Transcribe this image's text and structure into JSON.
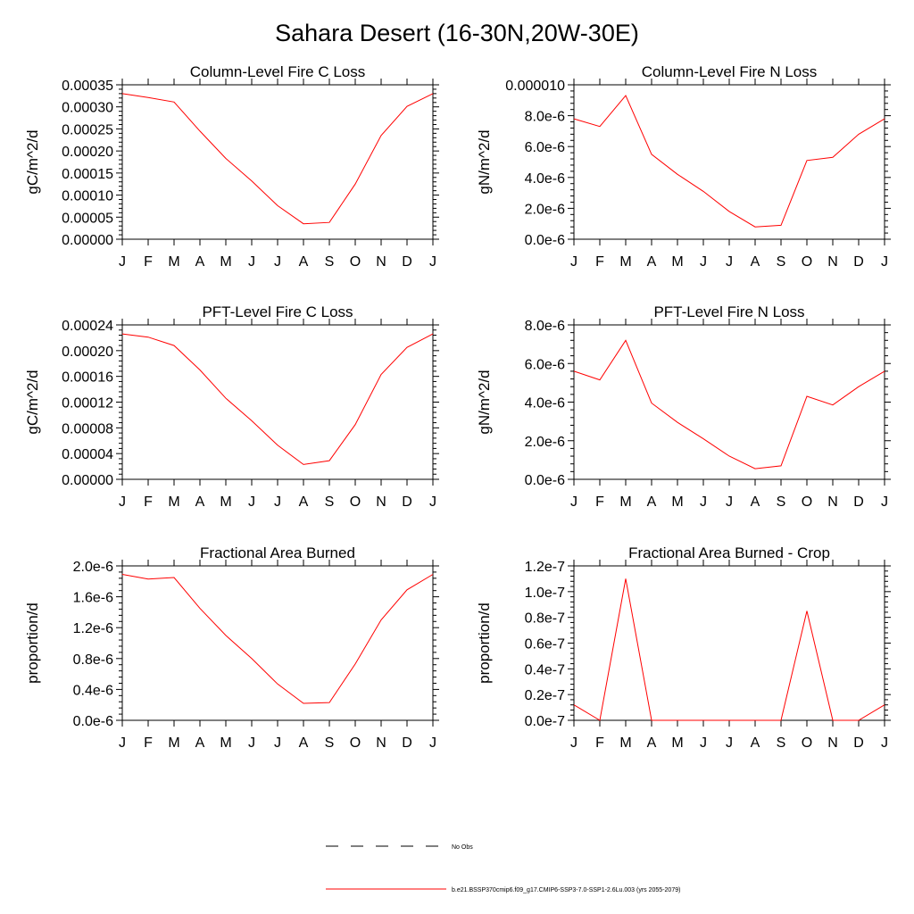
{
  "figure": {
    "title": "Sahara Desert (16-30N,20W-30E)"
  },
  "legend": {
    "entries": [
      {
        "label": "No Obs",
        "style": "dashed",
        "color": "#000000"
      },
      {
        "label": "b.e21.BSSP370cmip6.f09_g17.CMIP6-SSP3-7.0-SSP1-2.6Lu.003 (yrs 2055-2079)",
        "style": "solid",
        "color": "#ff0000"
      }
    ]
  },
  "chart_data": [
    {
      "type": "line",
      "title": "Column-Level Fire C Loss",
      "ylabel": "gC/m^2/d",
      "xlabel": "",
      "categories": [
        "J",
        "F",
        "M",
        "A",
        "M",
        "J",
        "J",
        "A",
        "S",
        "O",
        "N",
        "D",
        "J"
      ],
      "ylim": [
        0,
        0.00035
      ],
      "yticks": [
        "0.00000",
        "0.00005",
        "0.00010",
        "0.00015",
        "0.00020",
        "0.00025",
        "0.00030",
        "0.00035"
      ],
      "series": [
        {
          "color": "#ff0000",
          "values": [
            0.00033,
            0.000321,
            0.000311,
            0.000245,
            0.000183,
            0.000132,
            7.6e-05,
            3.5e-05,
            3.8e-05,
            0.000125,
            0.000235,
            0.000301,
            0.00033
          ]
        }
      ]
    },
    {
      "type": "line",
      "title": "Column-Level Fire N Loss",
      "ylabel": "gN/m^2/d",
      "xlabel": "",
      "categories": [
        "J",
        "F",
        "M",
        "A",
        "M",
        "J",
        "J",
        "A",
        "S",
        "O",
        "N",
        "D",
        "J"
      ],
      "ylim": [
        0,
        1e-05
      ],
      "yticks": [
        "0.0e-6",
        "2.0e-6",
        "4.0e-6",
        "6.0e-6",
        "8.0e-6",
        "0.000010"
      ],
      "series": [
        {
          "color": "#ff0000",
          "values": [
            7.8e-06,
            7.3e-06,
            9.3e-06,
            5.5e-06,
            4.2e-06,
            3.1e-06,
            1.8e-06,
            8e-07,
            9e-07,
            5.1e-06,
            5.3e-06,
            6.8e-06,
            7.8e-06
          ]
        }
      ]
    },
    {
      "type": "line",
      "title": "PFT-Level Fire C Loss",
      "ylabel": "gC/m^2/d",
      "xlabel": "",
      "categories": [
        "J",
        "F",
        "M",
        "A",
        "M",
        "J",
        "J",
        "A",
        "S",
        "O",
        "N",
        "D",
        "J"
      ],
      "ylim": [
        0,
        0.00024
      ],
      "yticks": [
        "0.00000",
        "0.00004",
        "0.00008",
        "0.00012",
        "0.00016",
        "0.00020",
        "0.00024"
      ],
      "series": [
        {
          "color": "#ff0000",
          "values": [
            0.000226,
            0.000221,
            0.000208,
            0.00017,
            0.000126,
            9.1e-05,
            5.3e-05,
            2.3e-05,
            2.9e-05,
            8.5e-05,
            0.000163,
            0.000205,
            0.000226
          ]
        }
      ]
    },
    {
      "type": "line",
      "title": "PFT-Level Fire N Loss",
      "ylabel": "gN/m^2/d",
      "xlabel": "",
      "categories": [
        "J",
        "F",
        "M",
        "A",
        "M",
        "J",
        "J",
        "A",
        "S",
        "O",
        "N",
        "D",
        "J"
      ],
      "ylim": [
        0,
        8e-06
      ],
      "yticks": [
        "0.0e-6",
        "2.0e-6",
        "4.0e-6",
        "6.0e-6",
        "8.0e-6"
      ],
      "series": [
        {
          "color": "#ff0000",
          "values": [
            5.6e-06,
            5.15e-06,
            7.2e-06,
            3.95e-06,
            2.95e-06,
            2.1e-06,
            1.2e-06,
            5.5e-07,
            7e-07,
            4.3e-06,
            3.85e-06,
            4.8e-06,
            5.6e-06
          ]
        }
      ]
    },
    {
      "type": "line",
      "title": "Fractional Area Burned",
      "ylabel": "proportion/d",
      "xlabel": "",
      "categories": [
        "J",
        "F",
        "M",
        "A",
        "M",
        "J",
        "J",
        "A",
        "S",
        "O",
        "N",
        "D",
        "J"
      ],
      "ylim": [
        0,
        2e-06
      ],
      "yticks": [
        "0.0e-6",
        "0.4e-6",
        "0.8e-6",
        "1.2e-6",
        "1.6e-6",
        "2.0e-6"
      ],
      "series": [
        {
          "color": "#ff0000",
          "values": [
            1.89e-06,
            1.83e-06,
            1.85e-06,
            1.45e-06,
            1.1e-06,
            8e-07,
            4.7e-07,
            2.2e-07,
            2.3e-07,
            7.3e-07,
            1.3e-06,
            1.69e-06,
            1.89e-06
          ]
        }
      ]
    },
    {
      "type": "line",
      "title": "Fractional Area Burned - Crop",
      "ylabel": "proportion/d",
      "xlabel": "",
      "categories": [
        "J",
        "F",
        "M",
        "A",
        "M",
        "J",
        "J",
        "A",
        "S",
        "O",
        "N",
        "D",
        "J"
      ],
      "ylim": [
        0,
        1.2e-07
      ],
      "yticks": [
        "0.0e-7",
        "0.2e-7",
        "0.4e-7",
        "0.6e-7",
        "0.8e-7",
        "1.0e-7",
        "1.2e-7"
      ],
      "series": [
        {
          "color": "#ff0000",
          "values": [
            1.2e-08,
            0,
            1.1e-07,
            0,
            0,
            0,
            0,
            0,
            0,
            8.5e-08,
            0,
            0,
            1.2e-08
          ]
        }
      ]
    }
  ]
}
